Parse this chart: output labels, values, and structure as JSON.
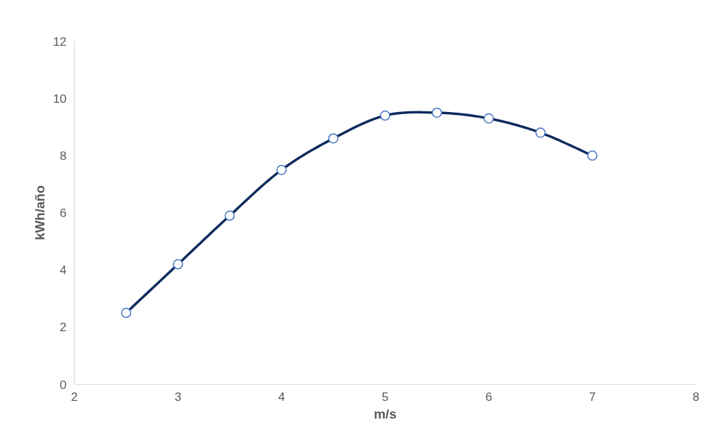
{
  "chart_data": {
    "type": "line",
    "xlabel": "m/s",
    "ylabel": "kWh/año",
    "x": [
      2.5,
      3,
      3.5,
      4,
      4.5,
      5,
      5.5,
      6,
      6.5,
      7
    ],
    "series": [
      {
        "color": "#0e2b5c",
        "values": [
          2.5,
          4.2,
          5.9,
          7.5,
          8.6,
          9.4,
          9.5,
          9.3,
          8.8,
          8.0
        ]
      }
    ],
    "xlim": [
      2,
      8
    ],
    "xticks": [
      2,
      3,
      4,
      5,
      6,
      7,
      8
    ],
    "ylim": [
      0,
      12
    ],
    "yticks": [
      0,
      2,
      4,
      6,
      8,
      10,
      12
    ],
    "marker": "circle",
    "line_style": "solid"
  }
}
